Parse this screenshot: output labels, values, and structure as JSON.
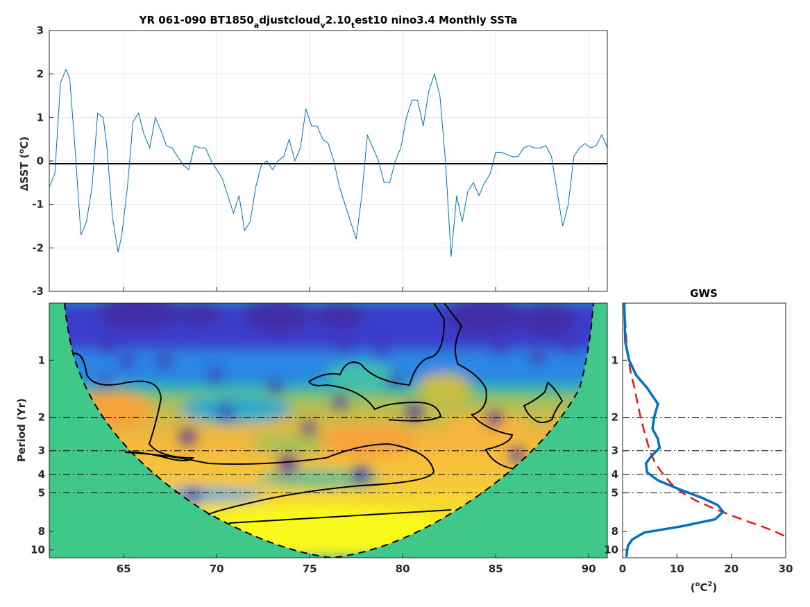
{
  "figure": {
    "title_parts": {
      "a": "YR 061-090 BT1850",
      "b": "a",
      "c": "djustcloud",
      "d": "v",
      "e": "2.10",
      "f": "t",
      "g": "est10 nino3.4 Monthly SSTa"
    }
  },
  "chart_data": [
    {
      "type": "line",
      "name": "timeseries",
      "ylabel_prefix": "∆SST (",
      "ylabel_deg": "o",
      "ylabel_suffix": "C)",
      "xlim": [
        61,
        91
      ],
      "ylim": [
        -3,
        3
      ],
      "yticks": [
        "-3",
        "-2",
        "-1",
        "0",
        "1",
        "2",
        "3"
      ],
      "xticks": [
        65,
        70,
        75,
        80,
        85,
        90
      ],
      "grid": true,
      "zero_line": true,
      "color": "#0072bd",
      "x": [
        61.0,
        61.3,
        61.6,
        61.9,
        62.1,
        62.4,
        62.7,
        63.0,
        63.3,
        63.6,
        63.9,
        64.1,
        64.4,
        64.7,
        64.9,
        65.2,
        65.5,
        65.8,
        66.1,
        66.4,
        66.7,
        67.0,
        67.3,
        67.6,
        67.9,
        68.2,
        68.5,
        68.8,
        69.1,
        69.4,
        69.7,
        70.0,
        70.3,
        70.6,
        70.9,
        71.2,
        71.5,
        71.8,
        72.1,
        72.4,
        72.7,
        73.0,
        73.3,
        73.6,
        73.9,
        74.2,
        74.5,
        74.8,
        75.1,
        75.4,
        75.7,
        76.0,
        76.3,
        76.6,
        76.9,
        77.2,
        77.5,
        77.8,
        78.1,
        78.4,
        78.7,
        79.0,
        79.3,
        79.6,
        79.9,
        80.2,
        80.5,
        80.8,
        81.1,
        81.4,
        81.7,
        82.0,
        82.3,
        82.6,
        82.9,
        83.2,
        83.5,
        83.8,
        84.1,
        84.4,
        84.7,
        85.0,
        85.3,
        85.6,
        85.9,
        86.2,
        86.5,
        86.8,
        87.1,
        87.4,
        87.7,
        88.0,
        88.3,
        88.6,
        88.9,
        89.2,
        89.5,
        89.8,
        90.1,
        90.4,
        90.7,
        91.0
      ],
      "y": [
        -0.6,
        -0.3,
        1.8,
        2.1,
        1.9,
        0.2,
        -1.7,
        -1.4,
        -0.6,
        1.1,
        1.0,
        0.3,
        -1.3,
        -2.1,
        -1.7,
        -0.6,
        0.9,
        1.1,
        0.6,
        0.3,
        1.0,
        0.7,
        0.35,
        0.3,
        0.1,
        -0.1,
        -0.2,
        0.35,
        0.3,
        0.3,
        0.0,
        -0.2,
        -0.4,
        -0.8,
        -1.2,
        -0.8,
        -1.6,
        -1.4,
        -0.6,
        -0.1,
        0.0,
        -0.2,
        0.0,
        0.1,
        0.5,
        0.0,
        0.3,
        1.2,
        0.8,
        0.8,
        0.5,
        0.4,
        0.0,
        -0.6,
        -1.0,
        -1.4,
        -1.8,
        -0.8,
        0.6,
        0.3,
        0.0,
        -0.5,
        -0.5,
        0.0,
        0.3,
        1.0,
        1.4,
        1.4,
        0.8,
        1.6,
        2.0,
        1.5,
        0.0,
        -2.2,
        -0.8,
        -1.4,
        -0.7,
        -0.5,
        -0.8,
        -0.5,
        -0.3,
        0.2,
        0.2,
        0.15,
        0.1,
        0.1,
        0.3,
        0.35,
        0.3,
        0.3,
        0.35,
        0.1,
        -0.7,
        -1.5,
        -1.0,
        0.1,
        0.3,
        0.4,
        0.3,
        0.35,
        0.6,
        0.3
      ]
    },
    {
      "type": "heatmap",
      "name": "wavelet-power",
      "ylabel": "Period (Yr)",
      "xlim": [
        61,
        91
      ],
      "y_scale": "log2",
      "ylim": [
        0.5,
        11
      ],
      "yticks": [
        "1",
        "2",
        "3",
        "4",
        "5",
        "8",
        "10"
      ],
      "xticks": [
        "65",
        "70",
        "75",
        "80",
        "85",
        "90"
      ],
      "reference_periods": [
        2,
        3,
        4,
        5
      ],
      "cone_of_influence": true,
      "significance_contours": true,
      "colormap": "parula"
    },
    {
      "type": "line",
      "name": "gws",
      "title": "GWS",
      "xlabel_prefix": "(",
      "xlabel_deg": "o",
      "xlabel_mid": "C",
      "xlabel_sup": "2",
      "xlabel_suffix": ")",
      "xlim": [
        0,
        30
      ],
      "xticks": [
        "0",
        "10",
        "20",
        "30"
      ],
      "y_scale": "log2",
      "yticks": [
        "1",
        "2",
        "3",
        "4",
        "5",
        "8",
        "10"
      ],
      "reference_periods": [
        2,
        3,
        4,
        5
      ],
      "series": [
        {
          "color": "#0072bd",
          "style": "solid",
          "period": [
            0.5,
            0.8,
            1.0,
            1.2,
            1.4,
            1.7,
            2.0,
            2.3,
            2.6,
            2.9,
            3.2,
            3.5,
            3.9,
            4.3,
            4.8,
            5.3,
            5.8,
            6.3,
            6.9,
            7.5,
            8.1,
            8.8,
            9.5,
            10.2,
            10.9
          ],
          "power": [
            0.3,
            0.5,
            1.2,
            2.5,
            4.5,
            6.5,
            5.8,
            5.5,
            6.5,
            6.8,
            5.3,
            4.3,
            4.5,
            6.5,
            10.5,
            14.5,
            17.5,
            18.5,
            17.0,
            11.0,
            4.0,
            1.8,
            1.0,
            0.8,
            0.7
          ]
        },
        {
          "color": "#e8161a",
          "style": "dashed",
          "period": [
            0.5,
            0.8,
            1.0,
            1.2,
            1.4,
            1.7,
            2.0,
            2.5,
            3.0,
            3.5,
            4.0,
            4.5,
            5.0,
            5.5,
            6.0,
            6.5,
            7.0,
            7.5,
            8.0,
            8.5
          ],
          "power": [
            0.3,
            0.7,
            1.1,
            1.6,
            2.2,
            2.8,
            3.3,
            4.2,
            5.0,
            6.0,
            7.5,
            9.0,
            11.0,
            13.5,
            16.5,
            19.5,
            22.5,
            25.5,
            28.0,
            30.0
          ]
        }
      ]
    }
  ]
}
